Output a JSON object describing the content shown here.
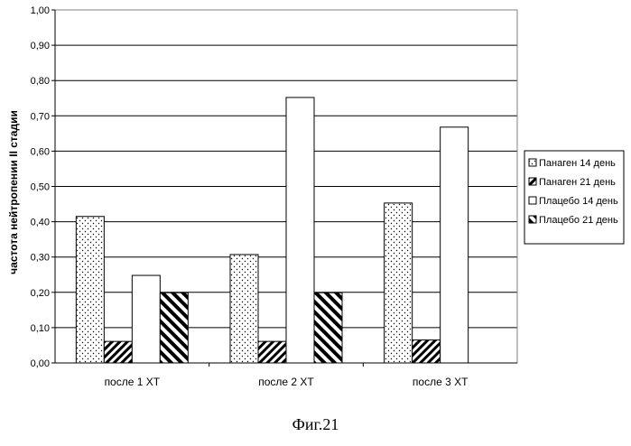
{
  "figure": {
    "caption": "Фиг.21"
  },
  "chart_data": {
    "type": "bar",
    "ylabel": "частота нейтропении II стадии",
    "xlabel": "",
    "ylim": [
      0,
      1.0
    ],
    "y_ticks": [
      "0,00",
      "0,10",
      "0,20",
      "0,30",
      "0,40",
      "0,50",
      "0,60",
      "0,70",
      "0,80",
      "0,90",
      "1,00"
    ],
    "categories": [
      "после 1 ХТ",
      "после 2 ХТ",
      "после 3 ХТ"
    ],
    "grid": true,
    "legend_position": "right",
    "series": [
      {
        "name": "Панаген 14 день",
        "values": [
          0.415,
          0.307,
          0.453
        ],
        "pattern": "dots"
      },
      {
        "name": "Панаген 21 день",
        "values": [
          0.061,
          0.061,
          0.065
        ],
        "pattern": "hatch-forward"
      },
      {
        "name": "Плацебо 14 день",
        "values": [
          0.248,
          0.752,
          0.668
        ],
        "pattern": "plain"
      },
      {
        "name": "Плацебо 21 день",
        "values": [
          0.199,
          0.199,
          null
        ],
        "pattern": "hatch-back"
      }
    ]
  }
}
